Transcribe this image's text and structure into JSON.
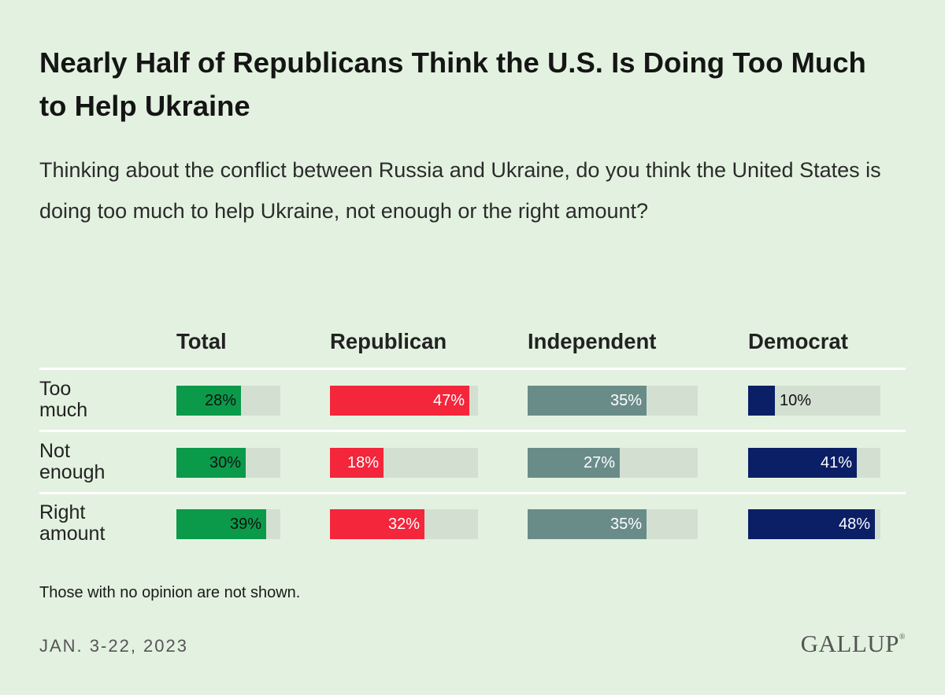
{
  "title": "Nearly Half of Republicans Think the U.S. Is Doing Too Much to Help Ukraine",
  "subtitle": "Thinking about the conflict between Russia and Ukraine, do you think the United States is doing too much to help Ukraine, not enough or the right amount?",
  "note": "Those with no opinion are not shown.",
  "date": "JAN. 3-22, 2023",
  "logo": "GALLUP",
  "chart_data": {
    "type": "bar",
    "title": "Nearly Half of Republicans Think the U.S. Is Doing Too Much to Help Ukraine",
    "categories": [
      {
        "label_lines": [
          "Too",
          "much"
        ]
      },
      {
        "label_lines": [
          "Not",
          "enough"
        ]
      },
      {
        "label_lines": [
          "Right",
          "amount"
        ]
      }
    ],
    "value_suffix": "%",
    "ylim": [
      0,
      100
    ],
    "series": [
      {
        "name": "Total",
        "color": "#0a9a4a",
        "label_color": "#111111",
        "values": [
          28,
          30,
          39
        ]
      },
      {
        "name": "Republican",
        "color": "#f3263b",
        "label_color": "#ffffff",
        "values": [
          47,
          18,
          32
        ]
      },
      {
        "name": "Independent",
        "color": "#6a8c89",
        "label_color": "#ffffff",
        "values": [
          35,
          27,
          35
        ]
      },
      {
        "name": "Democrat",
        "color": "#0b1f66",
        "label_color": "#ffffff",
        "values": [
          10,
          41,
          48
        ]
      }
    ]
  }
}
